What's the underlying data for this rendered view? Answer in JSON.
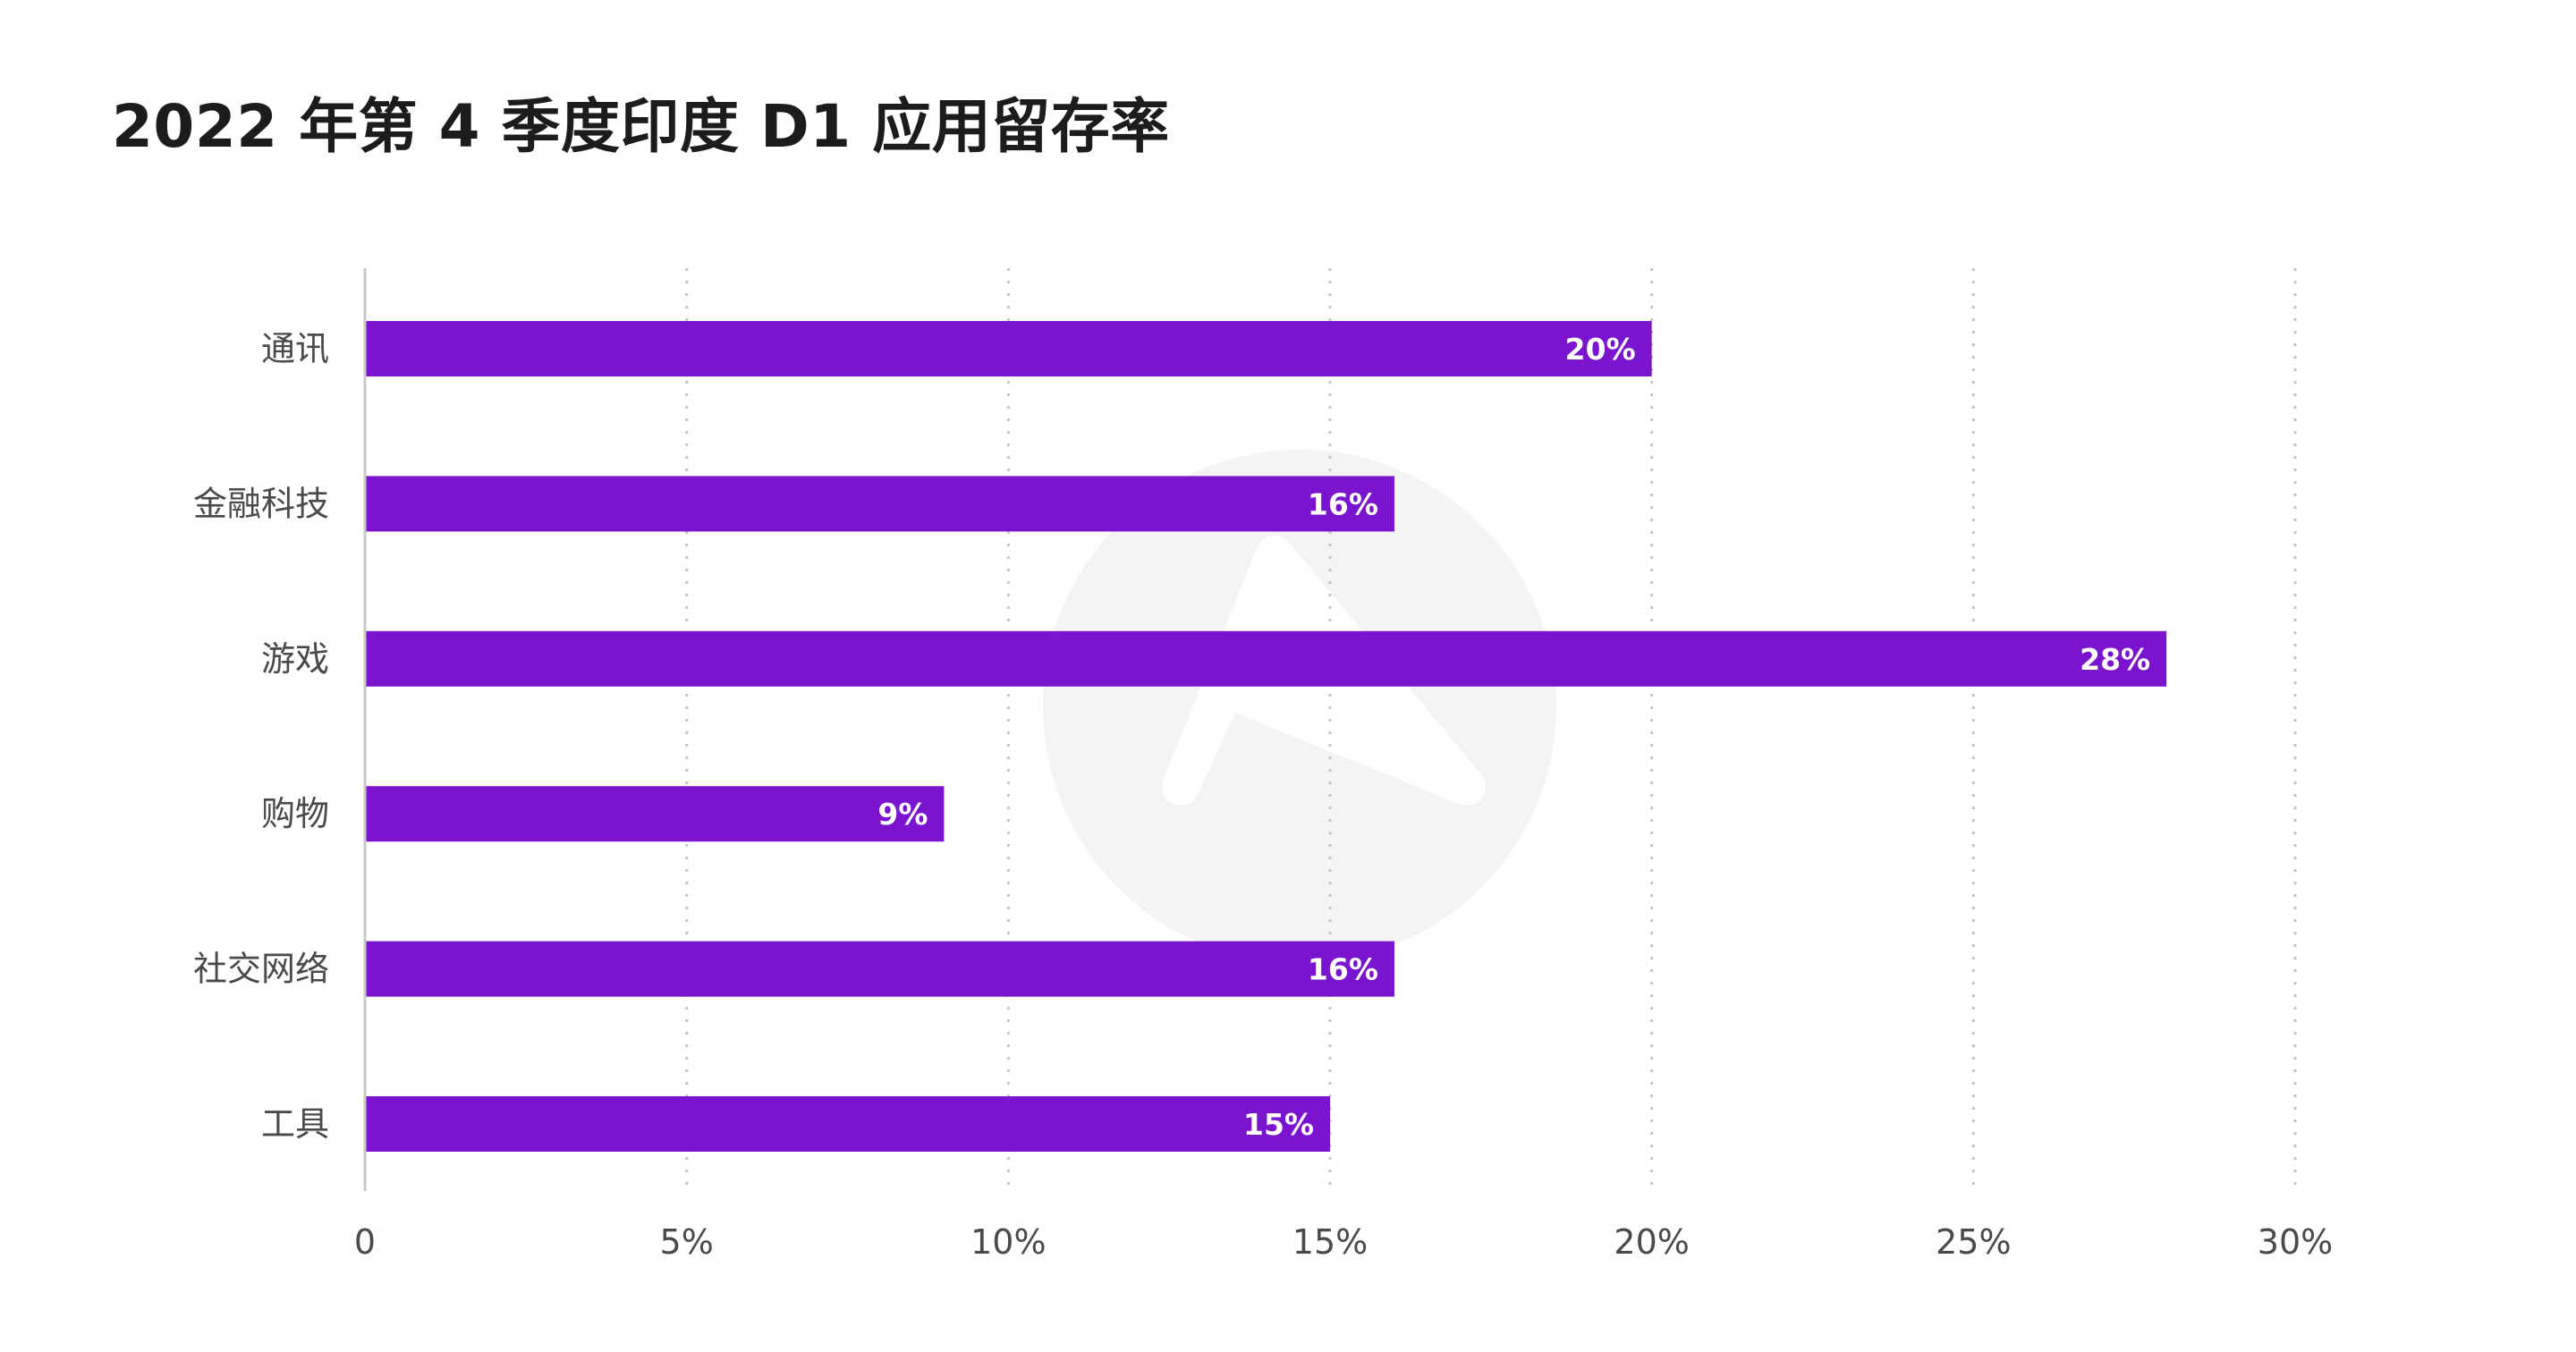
{
  "chart_data": {
    "type": "bar",
    "orientation": "horizontal",
    "title": "2022 年第 4 季度印度 D1 应用留存率",
    "categories": [
      "通讯",
      "金融科技",
      "游戏",
      "购物",
      "社交网络",
      "工具"
    ],
    "values": [
      20,
      16,
      28,
      9,
      16,
      15
    ],
    "data_labels": [
      "20%",
      "16%",
      "28%",
      "9%",
      "16%",
      "15%"
    ],
    "xlim": [
      0,
      30
    ],
    "x_ticks": [
      0,
      5,
      10,
      15,
      20,
      25,
      30
    ],
    "x_tick_labels": [
      "0",
      "5%",
      "10%",
      "15%",
      "20%",
      "25%",
      "30%"
    ],
    "grid": "vertical-dotted",
    "legend": "none",
    "bar_color": "#7a14cf"
  }
}
